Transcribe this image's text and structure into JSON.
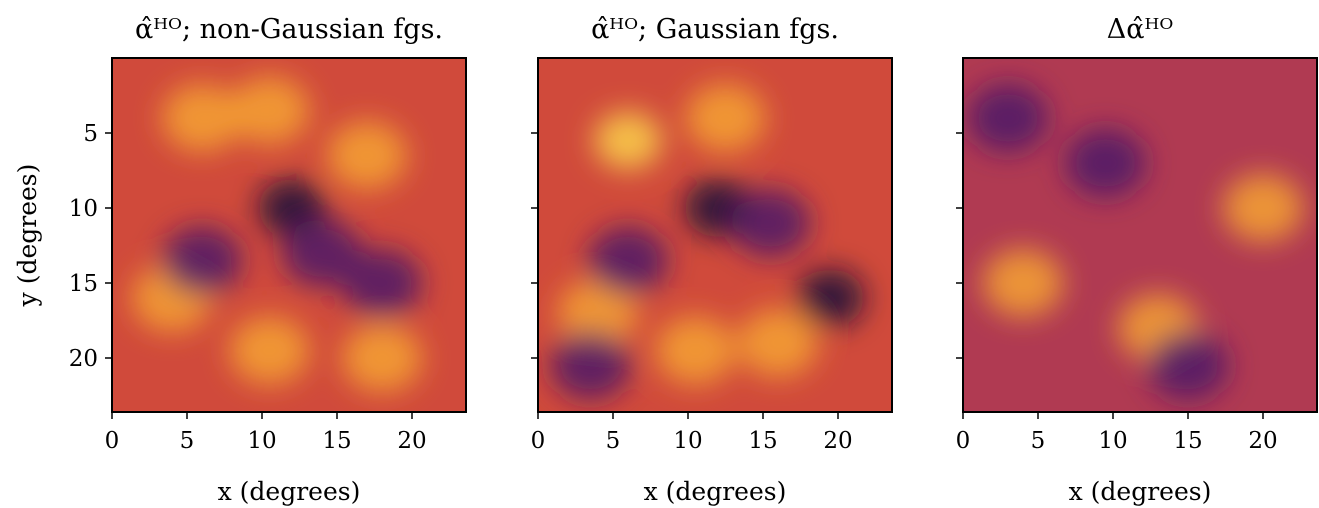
{
  "chart_data": [
    {
      "type": "heatmap",
      "title": "α̂ᴴᴼ; non-Gaussian fgs.",
      "xlabel": "x (degrees)",
      "ylabel": "y (degrees)",
      "xlim": [
        0,
        23.6
      ],
      "ylim": [
        23.6,
        0
      ],
      "xticks": [
        0,
        5,
        10,
        15,
        20
      ],
      "yticks": [
        5,
        10,
        15,
        20
      ],
      "colormap": "inferno",
      "background": "#d04a3b",
      "features": [
        {
          "x": 6,
          "y": 4,
          "level": "bright"
        },
        {
          "x": 10.5,
          "y": 3.5,
          "level": "bright"
        },
        {
          "x": 17,
          "y": 6.5,
          "level": "bright"
        },
        {
          "x": 4,
          "y": 16,
          "level": "bright"
        },
        {
          "x": 10.5,
          "y": 19.5,
          "level": "bright"
        },
        {
          "x": 18,
          "y": 20,
          "level": "bright"
        },
        {
          "x": 12,
          "y": 10,
          "level": "very-dark"
        },
        {
          "x": 6,
          "y": 13.5,
          "level": "dark"
        },
        {
          "x": 14,
          "y": 13,
          "level": "dark"
        },
        {
          "x": 18,
          "y": 15,
          "level": "dark"
        }
      ]
    },
    {
      "type": "heatmap",
      "title": "α̂ᴴᴼ; Gaussian fgs.",
      "xlabel": "x (degrees)",
      "ylabel": "",
      "xlim": [
        0,
        23.6
      ],
      "ylim": [
        23.6,
        0
      ],
      "xticks": [
        0,
        5,
        10,
        15,
        20
      ],
      "yticks": [
        5,
        10,
        15,
        20
      ],
      "colormap": "inferno",
      "background": "#d04a3b",
      "features": [
        {
          "x": 6,
          "y": 5.5,
          "level": "very-bright"
        },
        {
          "x": 12.5,
          "y": 4,
          "level": "bright"
        },
        {
          "x": 4,
          "y": 17,
          "level": "bright"
        },
        {
          "x": 10.5,
          "y": 19.5,
          "level": "bright"
        },
        {
          "x": 16,
          "y": 19,
          "level": "bright"
        },
        {
          "x": 12,
          "y": 10,
          "level": "very-dark"
        },
        {
          "x": 6,
          "y": 13.5,
          "level": "dark"
        },
        {
          "x": 15.5,
          "y": 11,
          "level": "dark"
        },
        {
          "x": 19.5,
          "y": 16,
          "level": "very-dark"
        },
        {
          "x": 3.5,
          "y": 20.5,
          "level": "dark"
        }
      ]
    },
    {
      "type": "heatmap",
      "title": "Δα̂ᴴᴼ",
      "xlabel": "x (degrees)",
      "ylabel": "",
      "xlim": [
        0,
        23.6
      ],
      "ylim": [
        23.6,
        0
      ],
      "xticks": [
        0,
        5,
        10,
        15,
        20
      ],
      "yticks": [
        5,
        10,
        15,
        20
      ],
      "colormap": "inferno",
      "background": "#b03a52",
      "features": [
        {
          "x": 9.5,
          "y": 7,
          "level": "dark"
        },
        {
          "x": 3,
          "y": 4,
          "level": "dark"
        },
        {
          "x": 20,
          "y": 10,
          "level": "bright"
        },
        {
          "x": 4,
          "y": 15,
          "level": "bright"
        },
        {
          "x": 13,
          "y": 18,
          "level": "bright"
        },
        {
          "x": 15,
          "y": 20.5,
          "level": "dark"
        }
      ]
    }
  ]
}
